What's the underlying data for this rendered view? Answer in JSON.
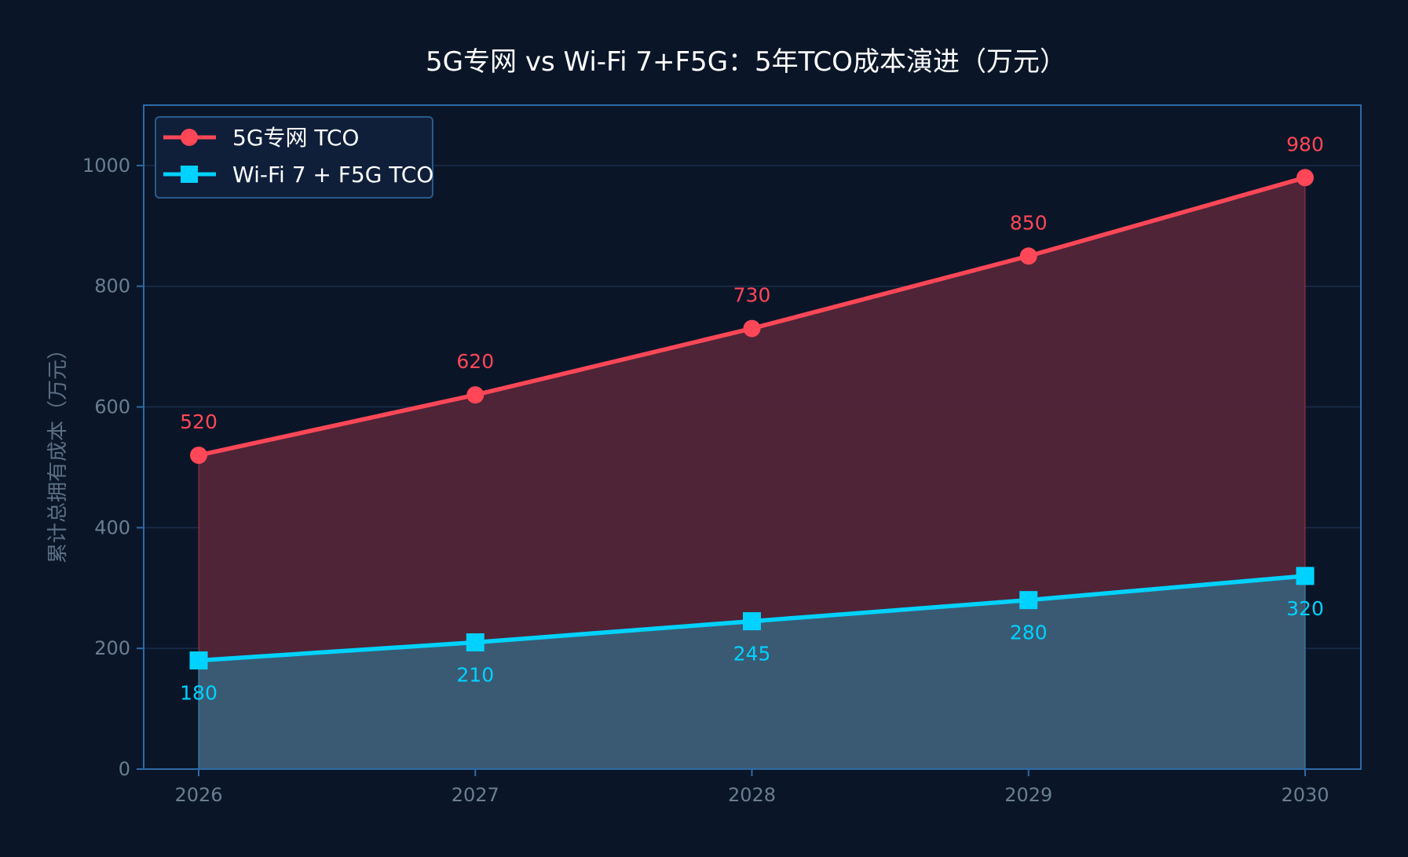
{
  "chart_data": {
    "type": "area",
    "title": "5G专网 vs Wi-Fi 7+F5G：5年TCO成本演进（万元）",
    "xlabel": "",
    "ylabel": "累计总拥有成本（万元）",
    "categories": [
      "2026",
      "2027",
      "2028",
      "2029",
      "2030"
    ],
    "ylim": [
      0,
      1100
    ],
    "yticks": [
      0,
      200,
      400,
      600,
      800,
      1000
    ],
    "grid": true,
    "legend_position": "top-left",
    "series": [
      {
        "name": "5G专网 TCO",
        "values": [
          520,
          620,
          730,
          850,
          980
        ],
        "color": "#ff4757",
        "marker": "circle",
        "label_position": "above"
      },
      {
        "name": "Wi-Fi 7 + F5G TCO",
        "values": [
          180,
          210,
          245,
          280,
          320
        ],
        "color": "#00d2ff",
        "marker": "square",
        "label_position": "below"
      }
    ],
    "colors": {
      "background": "#0a1628",
      "plot_border": "#2e6aa3",
      "grid": "#1b2d4d",
      "red_fill": "#532538",
      "blue_fill": "#3a5a74",
      "legend_bg": "#0f1f3a",
      "legend_border": "#2a5a8a"
    }
  }
}
